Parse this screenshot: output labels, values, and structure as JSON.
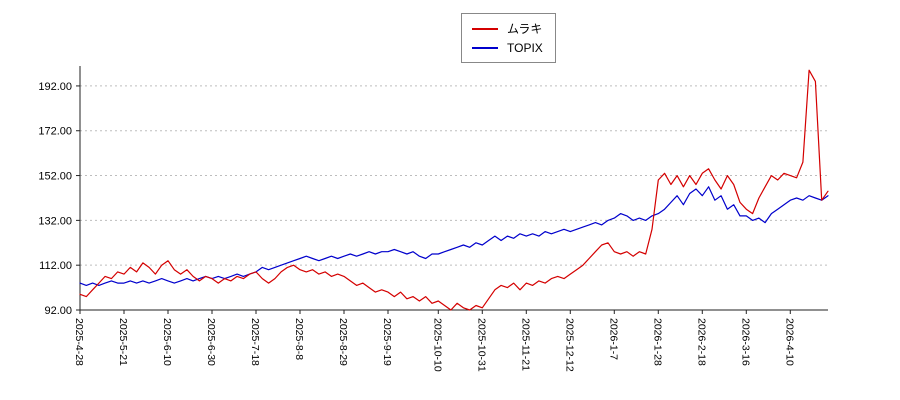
{
  "chart_data": {
    "type": "line",
    "title": "",
    "xlabel": "",
    "ylabel": "",
    "ylim": [
      92,
      200
    ],
    "grid": "horizontal-dotted",
    "legend_position": "top-center",
    "y_ticks": [
      92,
      112,
      132,
      152,
      172,
      192
    ],
    "x_tick_labels": [
      "2025-4-28",
      "2025-5-21",
      "2025-6-10",
      "2025-6-30",
      "2025-7-18",
      "2025-8-8",
      "2025-8-29",
      "2025-9-19",
      "2025-10-10",
      "2025-10-31",
      "2025-11-21",
      "2025-12-12",
      "2026-1-7",
      "2026-1-28",
      "2026-2-18",
      "2026-3-16",
      "2026-4-10"
    ],
    "x_tick_indices": [
      0,
      7,
      14,
      21,
      28,
      35,
      42,
      49,
      57,
      64,
      71,
      78,
      85,
      92,
      99,
      106,
      113
    ],
    "series": [
      {
        "name": "ムラキ",
        "color": "#d40000",
        "values": [
          99,
          98,
          101,
          104,
          107,
          106,
          109,
          108,
          111,
          109,
          113,
          111,
          108,
          112,
          114,
          110,
          108,
          110,
          107,
          105,
          107,
          106,
          104,
          106,
          105,
          107,
          106,
          108,
          109,
          106,
          104,
          106,
          109,
          111,
          112,
          110,
          109,
          110,
          108,
          109,
          107,
          108,
          107,
          105,
          103,
          104,
          102,
          100,
          101,
          100,
          98,
          100,
          97,
          98,
          96,
          98,
          95,
          96,
          94,
          92,
          95,
          93,
          92,
          94,
          93,
          97,
          101,
          103,
          102,
          104,
          101,
          104,
          103,
          105,
          104,
          106,
          107,
          106,
          108,
          110,
          112,
          115,
          118,
          121,
          122,
          118,
          117,
          118,
          116,
          118,
          117,
          128,
          150,
          153,
          148,
          152,
          147,
          152,
          148,
          153,
          155,
          150,
          146,
          152,
          148,
          140,
          137,
          135,
          142,
          147,
          152,
          150,
          153,
          152,
          151,
          158,
          199,
          194,
          141,
          145
        ]
      },
      {
        "name": "TOPIX",
        "color": "#0000cc",
        "values": [
          104,
          103,
          104,
          103,
          104,
          105,
          104,
          104,
          105,
          104,
          105,
          104,
          105,
          106,
          105,
          104,
          105,
          106,
          105,
          106,
          107,
          106,
          107,
          106,
          107,
          108,
          107,
          108,
          109,
          111,
          110,
          111,
          112,
          113,
          114,
          115,
          116,
          115,
          114,
          115,
          116,
          115,
          116,
          117,
          116,
          117,
          118,
          117,
          118,
          118,
          119,
          118,
          117,
          118,
          116,
          115,
          117,
          117,
          118,
          119,
          120,
          121,
          120,
          122,
          121,
          123,
          125,
          123,
          125,
          124,
          126,
          125,
          126,
          125,
          127,
          126,
          127,
          128,
          127,
          128,
          129,
          130,
          131,
          130,
          132,
          133,
          135,
          134,
          132,
          133,
          132,
          134,
          135,
          137,
          140,
          143,
          139,
          144,
          146,
          143,
          147,
          141,
          143,
          137,
          139,
          134,
          134,
          132,
          133,
          131,
          135,
          137,
          139,
          141,
          142,
          141,
          143,
          142,
          141,
          143
        ]
      }
    ]
  }
}
